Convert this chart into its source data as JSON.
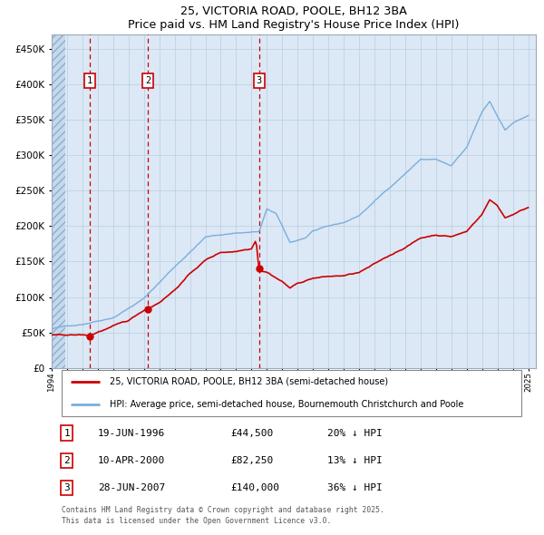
{
  "title": "25, VICTORIA ROAD, POOLE, BH12 3BA",
  "subtitle": "Price paid vs. HM Land Registry's House Price Index (HPI)",
  "background_color": "#ffffff",
  "plot_bg_color": "#dce8f5",
  "grid_color": "#b8cfe0",
  "red_color": "#cc0000",
  "blue_color": "#7aaedc",
  "ylim": [
    0,
    470000
  ],
  "yticks": [
    0,
    50000,
    100000,
    150000,
    200000,
    250000,
    300000,
    350000,
    400000,
    450000
  ],
  "year_start": 1994,
  "year_end": 2025,
  "transactions": [
    {
      "year": 1996.46,
      "price": 44500,
      "label": "1"
    },
    {
      "year": 2000.27,
      "price": 82250,
      "label": "2"
    },
    {
      "year": 2007.49,
      "price": 140000,
      "label": "3"
    }
  ],
  "legend_entries": [
    "25, VICTORIA ROAD, POOLE, BH12 3BA (semi-detached house)",
    "HPI: Average price, semi-detached house, Bournemouth Christchurch and Poole"
  ],
  "table_data": [
    {
      "num": "1",
      "date": "19-JUN-1996",
      "price": "£44,500",
      "hpi": "20% ↓ HPI"
    },
    {
      "num": "2",
      "date": "10-APR-2000",
      "price": "£82,250",
      "hpi": "13% ↓ HPI"
    },
    {
      "num": "3",
      "date": "28-JUN-2007",
      "price": "£140,000",
      "hpi": "36% ↓ HPI"
    }
  ],
  "footer": "Contains HM Land Registry data © Crown copyright and database right 2025.\nThis data is licensed under the Open Government Licence v3.0."
}
